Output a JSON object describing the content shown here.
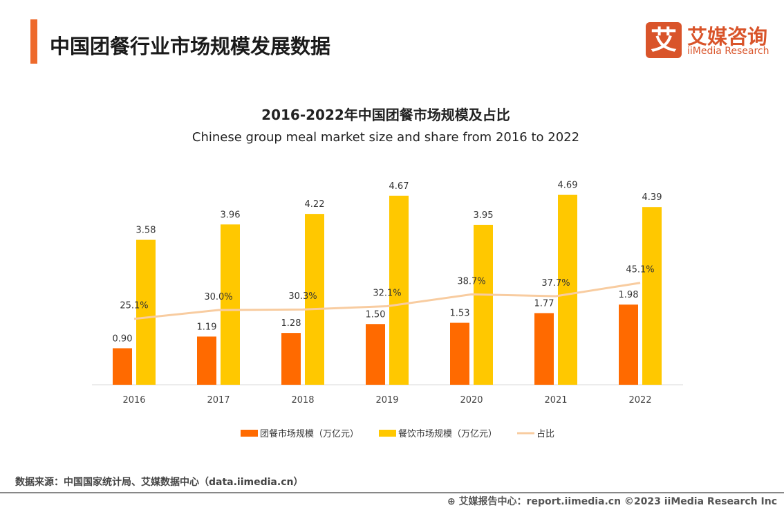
{
  "header": {
    "title": "中国团餐行业市场规模发展数据",
    "logo_cn": "艾媒咨询",
    "logo_en": "iiMedia Research",
    "logo_mark": "艾",
    "accent_color": "#ee6a2c"
  },
  "chart_data": {
    "type": "bar",
    "title": "2016-2022年中国团餐市场规模及占比",
    "subtitle": "Chinese group meal market size and share from 2016 to 2022",
    "categories": [
      "2016",
      "2017",
      "2018",
      "2019",
      "2020",
      "2021",
      "2022"
    ],
    "series": [
      {
        "name": "团餐市场规模（万亿元）",
        "type": "bar",
        "color": "#ff6a00",
        "values": [
          0.9,
          1.19,
          1.28,
          1.5,
          1.53,
          1.77,
          1.98
        ]
      },
      {
        "name": "餐饮市场规模（万亿元）",
        "type": "bar",
        "color": "#ffc800",
        "values": [
          3.58,
          3.96,
          4.22,
          4.67,
          3.95,
          4.69,
          4.39
        ]
      },
      {
        "name": "占比",
        "type": "line",
        "color": "#f8cca0",
        "values": [
          25.1,
          30.0,
          30.3,
          32.1,
          38.7,
          37.7,
          45.1
        ],
        "unit": "%"
      }
    ],
    "legend": "bottom",
    "grid": false
  },
  "footer": {
    "source": "数据来源：中国国家统计局、艾媒数据中心（data.iimedia.cn）",
    "copyright": "艾媒报告中心：report.iimedia.cn  ©2023  iiMedia Research  Inc"
  }
}
